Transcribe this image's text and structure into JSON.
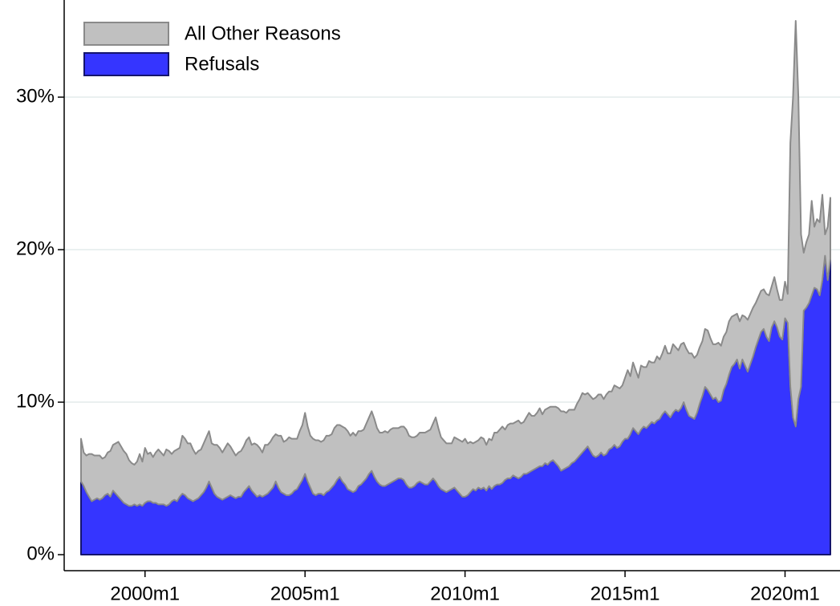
{
  "chart_data": {
    "type": "stacked_area",
    "x": [
      "1998m1",
      "1998m2",
      "1998m3",
      "1998m4",
      "1998m5",
      "1998m6",
      "1998m7",
      "1998m8",
      "1998m9",
      "1998m10",
      "1998m11",
      "1998m12",
      "1999m1",
      "1999m2",
      "1999m3",
      "1999m4",
      "1999m5",
      "1999m6",
      "1999m7",
      "1999m8",
      "1999m9",
      "1999m10",
      "1999m11",
      "1999m12",
      "2000m1",
      "2000m2",
      "2000m3",
      "2000m4",
      "2000m5",
      "2000m6",
      "2000m7",
      "2000m8",
      "2000m9",
      "2000m10",
      "2000m11",
      "2000m12",
      "2001m1",
      "2001m2",
      "2001m3",
      "2001m4",
      "2001m5",
      "2001m6",
      "2001m7",
      "2001m8",
      "2001m9",
      "2001m10",
      "2001m11",
      "2001m12",
      "2002m1",
      "2002m2",
      "2002m3",
      "2002m4",
      "2002m5",
      "2002m6",
      "2002m7",
      "2002m8",
      "2002m9",
      "2002m10",
      "2002m11",
      "2002m12",
      "2003m1",
      "2003m2",
      "2003m3",
      "2003m4",
      "2003m5",
      "2003m6",
      "2003m7",
      "2003m8",
      "2003m9",
      "2003m10",
      "2003m11",
      "2003m12",
      "2004m1",
      "2004m2",
      "2004m3",
      "2004m4",
      "2004m5",
      "2004m6",
      "2004m7",
      "2004m8",
      "2004m9",
      "2004m10",
      "2004m11",
      "2004m12",
      "2005m1",
      "2005m2",
      "2005m3",
      "2005m4",
      "2005m5",
      "2005m6",
      "2005m7",
      "2005m8",
      "2005m9",
      "2005m10",
      "2005m11",
      "2005m12",
      "2006m1",
      "2006m2",
      "2006m3",
      "2006m4",
      "2006m5",
      "2006m6",
      "2006m7",
      "2006m8",
      "2006m9",
      "2006m10",
      "2006m11",
      "2006m12",
      "2007m1",
      "2007m2",
      "2007m3",
      "2007m4",
      "2007m5",
      "2007m6",
      "2007m7",
      "2007m8",
      "2007m9",
      "2007m10",
      "2007m11",
      "2007m12",
      "2008m1",
      "2008m2",
      "2008m3",
      "2008m4",
      "2008m5",
      "2008m6",
      "2008m7",
      "2008m8",
      "2008m9",
      "2008m10",
      "2008m11",
      "2008m12",
      "2009m1",
      "2009m2",
      "2009m3",
      "2009m4",
      "2009m5",
      "2009m6",
      "2009m7",
      "2009m8",
      "2009m9",
      "2009m10",
      "2009m11",
      "2009m12",
      "2010m1",
      "2010m2",
      "2010m3",
      "2010m4",
      "2010m5",
      "2010m6",
      "2010m7",
      "2010m8",
      "2010m9",
      "2010m10",
      "2010m11",
      "2010m12",
      "2011m1",
      "2011m2",
      "2011m3",
      "2011m4",
      "2011m5",
      "2011m6",
      "2011m7",
      "2011m8",
      "2011m9",
      "2011m10",
      "2011m11",
      "2011m12",
      "2012m1",
      "2012m2",
      "2012m3",
      "2012m4",
      "2012m5",
      "2012m6",
      "2012m7",
      "2012m8",
      "2012m9",
      "2012m10",
      "2012m11",
      "2012m12",
      "2013m1",
      "2013m2",
      "2013m3",
      "2013m4",
      "2013m5",
      "2013m6",
      "2013m7",
      "2013m8",
      "2013m9",
      "2013m10",
      "2013m11",
      "2013m12",
      "2014m1",
      "2014m2",
      "2014m3",
      "2014m4",
      "2014m5",
      "2014m6",
      "2014m7",
      "2014m8",
      "2014m9",
      "2014m10",
      "2014m11",
      "2014m12",
      "2015m1",
      "2015m2",
      "2015m3",
      "2015m4",
      "2015m5",
      "2015m6",
      "2015m7",
      "2015m8",
      "2015m9",
      "2015m10",
      "2015m11",
      "2015m12",
      "2016m1",
      "2016m2",
      "2016m3",
      "2016m4",
      "2016m5",
      "2016m6",
      "2016m7",
      "2016m8",
      "2016m9",
      "2016m10",
      "2016m11",
      "2016m12",
      "2017m1",
      "2017m2",
      "2017m3",
      "2017m4",
      "2017m5",
      "2017m6",
      "2017m7",
      "2017m8",
      "2017m9",
      "2017m10",
      "2017m11",
      "2017m12",
      "2018m1",
      "2018m2",
      "2018m3",
      "2018m4",
      "2018m5",
      "2018m6",
      "2018m7",
      "2018m8",
      "2018m9",
      "2018m10",
      "2018m11",
      "2018m12",
      "2019m1",
      "2019m2",
      "2019m3",
      "2019m4",
      "2019m5",
      "2019m6",
      "2019m7",
      "2019m8",
      "2019m9",
      "2019m10",
      "2019m11",
      "2019m12",
      "2020m1",
      "2020m2",
      "2020m3",
      "2020m4",
      "2020m5",
      "2020m6",
      "2020m7",
      "2020m8",
      "2020m9",
      "2020m10",
      "2020m11",
      "2020m12",
      "2021m1",
      "2021m2",
      "2021m3",
      "2021m4",
      "2021m5",
      "2021m6"
    ],
    "series": [
      {
        "name": "Refusals",
        "color": "#3535ff",
        "edgecolor": "#14146e",
        "values": [
          4.8,
          4.5,
          4.1,
          3.8,
          3.5,
          3.6,
          3.7,
          3.6,
          3.7,
          3.9,
          4.0,
          3.8,
          4.2,
          4.0,
          3.8,
          3.6,
          3.4,
          3.3,
          3.2,
          3.2,
          3.3,
          3.2,
          3.3,
          3.2,
          3.4,
          3.5,
          3.5,
          3.4,
          3.4,
          3.3,
          3.3,
          3.3,
          3.2,
          3.3,
          3.5,
          3.6,
          3.5,
          3.8,
          4.0,
          3.9,
          3.7,
          3.6,
          3.5,
          3.6,
          3.7,
          3.9,
          4.1,
          4.4,
          4.8,
          4.4,
          4.0,
          3.8,
          3.7,
          3.6,
          3.7,
          3.8,
          3.9,
          3.8,
          3.7,
          3.8,
          3.8,
          4.1,
          4.3,
          4.5,
          4.2,
          4.0,
          3.8,
          3.9,
          3.8,
          3.9,
          4.0,
          4.2,
          4.4,
          4.8,
          4.4,
          4.1,
          4.0,
          3.9,
          3.9,
          4.0,
          4.2,
          4.3,
          4.6,
          4.9,
          5.3,
          4.8,
          4.4,
          4.0,
          3.9,
          4.0,
          4.0,
          3.9,
          4.1,
          4.2,
          4.4,
          4.6,
          4.9,
          5.1,
          4.8,
          4.6,
          4.3,
          4.2,
          4.1,
          4.2,
          4.5,
          4.6,
          4.8,
          5.0,
          5.3,
          5.5,
          5.1,
          4.8,
          4.6,
          4.5,
          4.5,
          4.6,
          4.7,
          4.8,
          4.9,
          5.0,
          5.0,
          4.9,
          4.6,
          4.4,
          4.4,
          4.5,
          4.7,
          4.8,
          4.7,
          4.6,
          4.6,
          4.8,
          5.0,
          4.8,
          4.5,
          4.3,
          4.2,
          4.1,
          4.2,
          4.3,
          4.4,
          4.2,
          4.0,
          3.8,
          3.8,
          3.9,
          4.1,
          4.3,
          4.2,
          4.4,
          4.3,
          4.4,
          4.2,
          4.5,
          4.3,
          4.5,
          4.6,
          4.6,
          4.7,
          4.9,
          5.0,
          5.0,
          5.2,
          5.1,
          5.0,
          5.1,
          5.3,
          5.3,
          5.4,
          5.5,
          5.6,
          5.7,
          5.8,
          5.8,
          6.0,
          5.9,
          6.1,
          6.2,
          6.0,
          5.8,
          5.5,
          5.6,
          5.7,
          5.8,
          6.0,
          6.1,
          6.3,
          6.5,
          6.7,
          6.9,
          7.1,
          6.8,
          6.5,
          6.4,
          6.5,
          6.7,
          6.5,
          6.6,
          6.9,
          7.0,
          7.2,
          7.0,
          7.1,
          7.4,
          7.6,
          7.6,
          7.9,
          8.3,
          8.1,
          7.9,
          8.2,
          8.4,
          8.3,
          8.5,
          8.7,
          8.6,
          8.8,
          8.9,
          9.2,
          9.4,
          9.2,
          9.0,
          9.3,
          9.5,
          9.4,
          9.6,
          10.0,
          9.5,
          9.1,
          9.0,
          8.9,
          9.3,
          9.9,
          10.4,
          11.0,
          10.8,
          10.5,
          10.2,
          10.3,
          10.0,
          10.1,
          10.8,
          11.2,
          11.8,
          12.3,
          12.5,
          12.8,
          12.2,
          12.8,
          12.4,
          12.0,
          12.5,
          13.0,
          13.6,
          14.1,
          14.6,
          14.8,
          14.3,
          14.0,
          14.9,
          15.3,
          14.9,
          14.3,
          14.1,
          15.5,
          15.2,
          11.0,
          9.0,
          8.4,
          10.2,
          11.0,
          16.0,
          16.2,
          16.5,
          17.0,
          17.5,
          17.4,
          17.0,
          18.0,
          19.6,
          18.0,
          19.4
        ]
      },
      {
        "name": "All Other Reasons",
        "color": "#c0c0c0",
        "edgecolor": "#8a8a8a",
        "values": [
          2.8,
          2.2,
          2.4,
          2.8,
          3.1,
          2.9,
          2.8,
          2.9,
          2.6,
          2.5,
          2.7,
          3.0,
          3.0,
          3.3,
          3.6,
          3.5,
          3.4,
          3.3,
          3.0,
          2.8,
          2.6,
          2.9,
          3.3,
          2.9,
          3.6,
          3.1,
          3.2,
          3.0,
          3.3,
          3.6,
          3.4,
          3.2,
          3.7,
          3.5,
          3.1,
          3.2,
          3.4,
          3.2,
          3.8,
          3.7,
          3.6,
          3.7,
          3.4,
          3.0,
          3.1,
          3.0,
          3.2,
          3.3,
          3.3,
          2.9,
          3.2,
          3.4,
          3.3,
          3.1,
          3.3,
          3.5,
          3.2,
          3.0,
          2.8,
          2.9,
          3.0,
          3.0,
          3.2,
          3.2,
          3.0,
          3.3,
          3.4,
          3.1,
          2.9,
          3.3,
          3.2,
          3.2,
          3.3,
          3.1,
          3.4,
          3.7,
          3.4,
          3.6,
          3.8,
          3.6,
          3.4,
          3.3,
          3.5,
          3.6,
          4.0,
          3.6,
          3.4,
          3.6,
          3.6,
          3.5,
          3.4,
          3.6,
          3.7,
          3.6,
          3.5,
          3.7,
          3.6,
          3.4,
          3.6,
          3.7,
          3.8,
          3.6,
          3.9,
          3.6,
          3.6,
          3.5,
          3.4,
          3.6,
          3.7,
          3.9,
          3.8,
          3.5,
          3.4,
          3.5,
          3.6,
          3.4,
          3.5,
          3.5,
          3.4,
          3.3,
          3.4,
          3.5,
          3.6,
          3.4,
          3.3,
          3.2,
          3.1,
          3.2,
          3.3,
          3.4,
          3.5,
          3.4,
          3.6,
          4.2,
          3.8,
          3.4,
          3.3,
          3.2,
          3.1,
          3.0,
          3.3,
          3.4,
          3.5,
          3.6,
          3.8,
          3.4,
          3.3,
          3.0,
          3.2,
          3.1,
          3.4,
          3.2,
          3.0,
          3.1,
          3.2,
          3.5,
          3.4,
          3.6,
          3.7,
          3.3,
          3.5,
          3.6,
          3.4,
          3.6,
          3.8,
          3.5,
          3.4,
          3.7,
          3.9,
          3.6,
          3.5,
          3.6,
          3.8,
          3.4,
          3.5,
          3.7,
          3.6,
          3.5,
          3.7,
          3.8,
          3.9,
          3.8,
          3.6,
          3.7,
          3.5,
          3.4,
          3.6,
          3.7,
          3.9,
          3.6,
          3.5,
          3.6,
          3.7,
          3.9,
          4.0,
          3.8,
          3.7,
          3.9,
          3.8,
          3.7,
          3.9,
          4.0,
          3.8,
          3.7,
          4.0,
          4.5,
          3.8,
          4.3,
          4.0,
          3.7,
          4.2,
          3.9,
          4.0,
          4.2,
          3.9,
          4.0,
          4.2,
          3.9,
          4.0,
          4.3,
          4.0,
          4.2,
          4.5,
          4.1,
          4.0,
          4.2,
          3.9,
          4.0,
          4.1,
          4.2,
          4.0,
          3.8,
          3.7,
          3.6,
          3.8,
          3.9,
          3.7,
          3.6,
          3.5,
          3.9,
          3.6,
          3.5,
          3.4,
          3.5,
          3.3,
          3.2,
          3.0,
          3.1,
          2.9,
          3.2,
          3.4,
          3.3,
          3.2,
          2.9,
          2.8,
          2.7,
          2.6,
          2.8,
          3.0,
          2.7,
          2.9,
          2.5,
          2.4,
          2.6,
          2.4,
          1.9,
          16.0,
          21.0,
          26.6,
          19.8,
          10.0,
          3.8,
          4.3,
          4.5,
          6.2,
          4.0,
          4.6,
          4.8,
          5.6,
          1.4,
          3.5,
          4.0
        ]
      }
    ],
    "ylim": [
      -1.05,
      36.37
    ],
    "yticks": [
      {
        "value": 0,
        "label": "0%"
      },
      {
        "value": 10,
        "label": "10%"
      },
      {
        "value": 20,
        "label": "20%"
      },
      {
        "value": 30,
        "label": "30%"
      }
    ],
    "xticks": [
      "2000m1",
      "2005m1",
      "2010m1",
      "2015m1",
      "2020m1"
    ],
    "grid": true,
    "legend": "upper left"
  }
}
